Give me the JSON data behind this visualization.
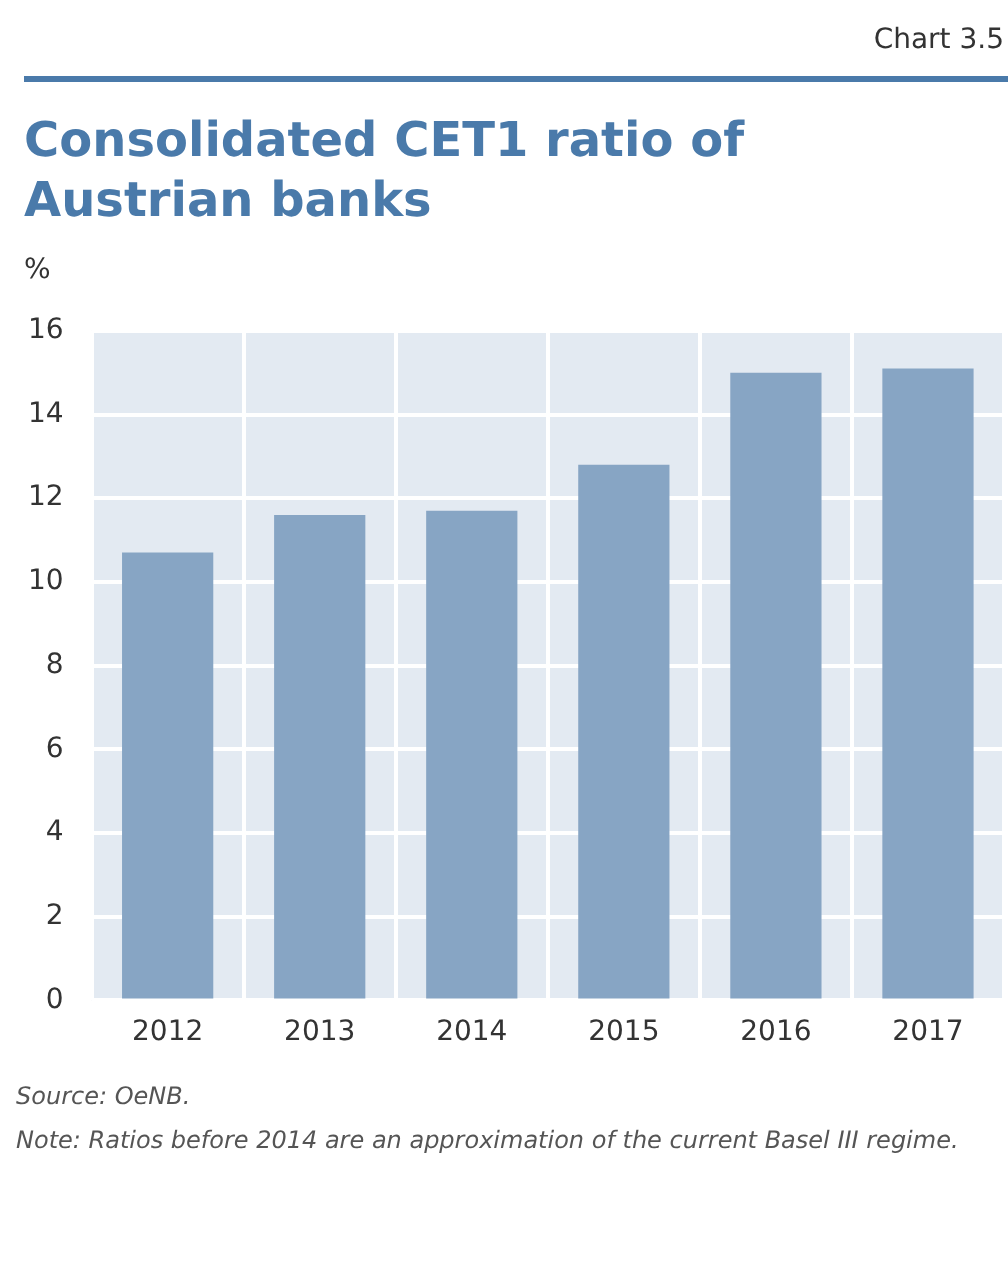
{
  "chart_data": {
    "type": "bar",
    "title": "Consolidated CET1 ratio of Austrian banks",
    "subtitle": "Chart 3.5",
    "ylabel": "%",
    "categories": [
      "2012",
      "2013",
      "2014",
      "2015",
      "2016",
      "2017"
    ],
    "values": [
      10.7,
      11.6,
      11.7,
      12.8,
      15.0,
      15.1
    ],
    "color": "#87a5c4",
    "ylim": [
      0,
      16
    ],
    "yticks": [
      0,
      2,
      4,
      6,
      8,
      10,
      12,
      14,
      16
    ],
    "grid": true,
    "legend": false,
    "annotations": [
      "Source: OeNB.",
      "Note: Ratios before 2014 are an approximation of the current Basel III regime."
    ]
  }
}
